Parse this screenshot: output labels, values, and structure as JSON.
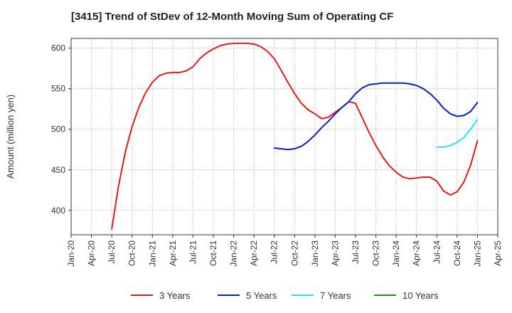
{
  "chart_data": {
    "type": "line",
    "title": "[3415]  Trend of StDev of 12-Month Moving Sum of Operating CF",
    "xlabel": "",
    "ylabel": "Amount (million yen)",
    "x_ticks": [
      "Jan-20",
      "Apr-20",
      "Jul-20",
      "Oct-20",
      "Jan-21",
      "Apr-21",
      "Jul-21",
      "Oct-21",
      "Jan-22",
      "Apr-22",
      "Jul-22",
      "Oct-22",
      "Jan-23",
      "Apr-23",
      "Jul-23",
      "Oct-23",
      "Jan-24",
      "Apr-24",
      "Jul-24",
      "Oct-24",
      "Jan-25",
      "Apr-25"
    ],
    "y_ticks": [
      400,
      450,
      500,
      550,
      600
    ],
    "ylim": [
      370,
      612
    ],
    "grid": true,
    "legend_position": "bottom",
    "series": [
      {
        "name": "3 Years",
        "color": "#e31a1c",
        "points": [
          [
            "2020-07",
            377
          ],
          [
            "2020-08",
            430
          ],
          [
            "2020-09",
            472
          ],
          [
            "2020-10",
            503
          ],
          [
            "2020-11",
            527
          ],
          [
            "2020-12",
            545
          ],
          [
            "2021-01",
            558
          ],
          [
            "2021-02",
            566
          ],
          [
            "2021-03",
            569
          ],
          [
            "2021-04",
            570
          ],
          [
            "2021-05",
            570
          ],
          [
            "2021-06",
            572
          ],
          [
            "2021-07",
            577
          ],
          [
            "2021-08",
            587
          ],
          [
            "2021-09",
            594
          ],
          [
            "2021-10",
            599
          ],
          [
            "2021-11",
            603
          ],
          [
            "2021-12",
            605
          ],
          [
            "2022-01",
            606
          ],
          [
            "2022-02",
            606
          ],
          [
            "2022-03",
            606
          ],
          [
            "2022-04",
            605
          ],
          [
            "2022-05",
            602
          ],
          [
            "2022-06",
            596
          ],
          [
            "2022-07",
            587
          ],
          [
            "2022-08",
            573
          ],
          [
            "2022-09",
            558
          ],
          [
            "2022-10",
            544
          ],
          [
            "2022-11",
            532
          ],
          [
            "2022-12",
            524
          ],
          [
            "2023-01",
            519
          ],
          [
            "2023-02",
            513
          ],
          [
            "2023-03",
            515
          ],
          [
            "2023-04",
            521
          ],
          [
            "2023-05",
            527
          ],
          [
            "2023-06",
            534
          ],
          [
            "2023-07",
            532
          ],
          [
            "2023-08",
            514
          ],
          [
            "2023-09",
            496
          ],
          [
            "2023-10",
            480
          ],
          [
            "2023-11",
            466
          ],
          [
            "2023-12",
            455
          ],
          [
            "2024-01",
            447
          ],
          [
            "2024-02",
            441
          ],
          [
            "2024-03",
            439
          ],
          [
            "2024-04",
            440
          ],
          [
            "2024-05",
            441
          ],
          [
            "2024-06",
            441
          ],
          [
            "2024-07",
            436
          ],
          [
            "2024-08",
            424
          ],
          [
            "2024-09",
            419
          ],
          [
            "2024-10",
            423
          ],
          [
            "2024-11",
            435
          ],
          [
            "2024-12",
            456
          ],
          [
            "2025-01",
            486
          ]
        ]
      },
      {
        "name": "5 Years",
        "color": "#0a1ec8",
        "points": [
          [
            "2022-07",
            477
          ],
          [
            "2022-08",
            476
          ],
          [
            "2022-09",
            475
          ],
          [
            "2022-10",
            476
          ],
          [
            "2022-11",
            479
          ],
          [
            "2022-12",
            485
          ],
          [
            "2023-01",
            493
          ],
          [
            "2023-02",
            502
          ],
          [
            "2023-03",
            510
          ],
          [
            "2023-04",
            519
          ],
          [
            "2023-05",
            527
          ],
          [
            "2023-06",
            534
          ],
          [
            "2023-07",
            544
          ],
          [
            "2023-08",
            551
          ],
          [
            "2023-09",
            555
          ],
          [
            "2023-10",
            556
          ],
          [
            "2023-11",
            557
          ],
          [
            "2023-12",
            557
          ],
          [
            "2024-01",
            557
          ],
          [
            "2024-02",
            557
          ],
          [
            "2024-03",
            556
          ],
          [
            "2024-04",
            554
          ],
          [
            "2024-05",
            550
          ],
          [
            "2024-06",
            544
          ],
          [
            "2024-07",
            536
          ],
          [
            "2024-08",
            526
          ],
          [
            "2024-09",
            519
          ],
          [
            "2024-10",
            516
          ],
          [
            "2024-11",
            517
          ],
          [
            "2024-12",
            522
          ],
          [
            "2025-01",
            533
          ]
        ]
      },
      {
        "name": "7 Years",
        "color": "#22e5f2",
        "points": [
          [
            "2024-07",
            478
          ],
          [
            "2024-08",
            478
          ],
          [
            "2024-09",
            480
          ],
          [
            "2024-10",
            484
          ],
          [
            "2024-11",
            490
          ],
          [
            "2024-12",
            500
          ],
          [
            "2025-01",
            512
          ]
        ]
      },
      {
        "name": "10 Years",
        "color": "#228b22",
        "points": []
      }
    ]
  }
}
